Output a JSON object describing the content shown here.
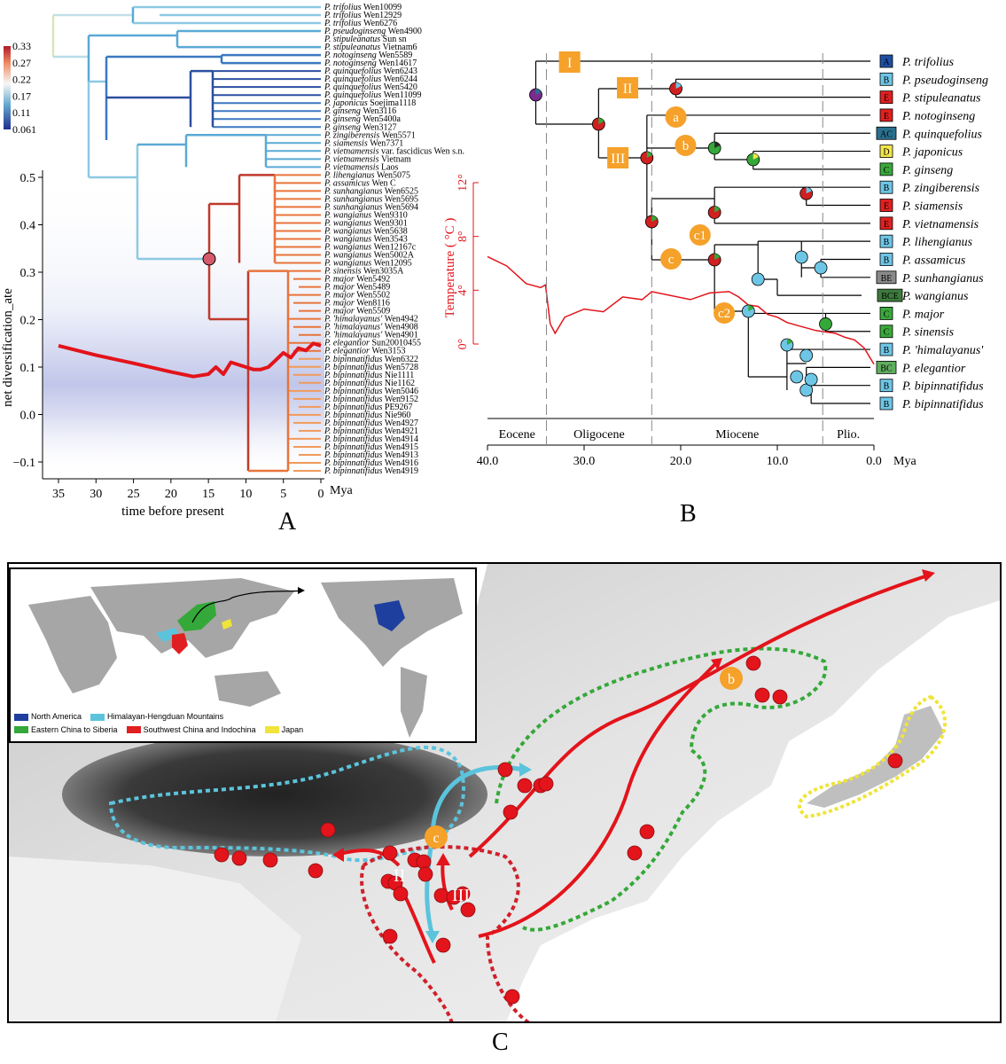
{
  "panel_labels": {
    "a": "A",
    "b": "B",
    "c": "C"
  },
  "panelA": {
    "colorbar_ticks": [
      "0.33",
      "0.27",
      "0.22",
      "0.17",
      "0.11",
      "0.061"
    ],
    "y_axis_label": "net diversification_ate",
    "x_axis_label": "time before present",
    "x_unit": "Mya",
    "tips": [
      {
        "sp": "P. trifolius",
        "id": "Wen10099"
      },
      {
        "sp": "P. trifolius",
        "id": "Wen12929"
      },
      {
        "sp": "P. trifolius",
        "id": "Wen6276"
      },
      {
        "sp": "P. pseudoginseng",
        "id": "Wen4900"
      },
      {
        "sp": "P. stipuleanatus",
        "id": "Sun sn"
      },
      {
        "sp": "P. stipuleanatus",
        "id": "Vietnam6"
      },
      {
        "sp": "P. notoginseng",
        "id": "Wen5589"
      },
      {
        "sp": "P. notoginseng",
        "id": "Wen14617"
      },
      {
        "sp": "P. quinquefolius",
        "id": "Wen6243"
      },
      {
        "sp": "P. quinquefolius",
        "id": "Wen6244"
      },
      {
        "sp": "P. quinquefolius",
        "id": "Wen5420"
      },
      {
        "sp": "P. quinquefolius",
        "id": "Wen11099"
      },
      {
        "sp": "P. japonicus",
        "id": "Soejima1118"
      },
      {
        "sp": "P. ginseng",
        "id": "Wen3116"
      },
      {
        "sp": "P. ginseng",
        "id": "Wen5400a"
      },
      {
        "sp": "P. ginseng",
        "id": "Wen3127"
      },
      {
        "sp": "P. zingiberensis",
        "id": "Wen5571"
      },
      {
        "sp": "P. siamensis",
        "id": "Wen7371"
      },
      {
        "sp": "P. vietnamensis",
        "id": "var. fascidicus Wen s.n."
      },
      {
        "sp": "P. vietnamensis",
        "id": "Vietnam"
      },
      {
        "sp": "P. vietnamensis",
        "id": "Laos"
      },
      {
        "sp": "P. lihengianus",
        "id": "Wen5075"
      },
      {
        "sp": "P. assamicus",
        "id": "Wen C"
      },
      {
        "sp": "P. sunhangianus",
        "id": "Wen6525"
      },
      {
        "sp": "P. sunhangianus",
        "id": "Wen5695"
      },
      {
        "sp": "P. sunhangianus",
        "id": "Wen5694"
      },
      {
        "sp": "P. wangianus",
        "id": "Wen9310"
      },
      {
        "sp": "P. wangianus",
        "id": "Wen9301"
      },
      {
        "sp": "P. wangianus",
        "id": "Wen5638"
      },
      {
        "sp": "P. wangianus",
        "id": "Wen3543"
      },
      {
        "sp": "P. wangianus",
        "id": "Wen12167c"
      },
      {
        "sp": "P. wangianus",
        "id": "Wen5002A"
      },
      {
        "sp": "P. wangianus",
        "id": "Wen12095"
      },
      {
        "sp": "P. sinensis",
        "id": "Wen3035A"
      },
      {
        "sp": "P. major",
        "id": "Wen5492"
      },
      {
        "sp": "P. major",
        "id": "Wen5489"
      },
      {
        "sp": "P. major",
        "id": "Wen5502"
      },
      {
        "sp": "P. major",
        "id": "Wen8116"
      },
      {
        "sp": "P. major",
        "id": "Wen5509"
      },
      {
        "sp": "P. 'himalayanus'",
        "id": "Wen4942"
      },
      {
        "sp": "P. 'himalayanus'",
        "id": "Wen4908"
      },
      {
        "sp": "P. 'himalayanus'",
        "id": "Wen4901"
      },
      {
        "sp": "P. elegantior",
        "id": "Sun20010455"
      },
      {
        "sp": "P. elegantior",
        "id": "Wen3153"
      },
      {
        "sp": "P. bipinnatifidus",
        "id": "Wen6322"
      },
      {
        "sp": "P. bipinnatifidus",
        "id": "Wen5728"
      },
      {
        "sp": "P. bipinnatifidus",
        "id": "Nie1111"
      },
      {
        "sp": "P. bipinnatifidus",
        "id": "Nie1162"
      },
      {
        "sp": "P. bipinnatifidus",
        "id": "Wen5046"
      },
      {
        "sp": "P. bipinnatifidus",
        "id": "Wen9152"
      },
      {
        "sp": "P. bipinnatifidus",
        "id": "PE9267"
      },
      {
        "sp": "P. bipinnatifidus",
        "id": "Nie960"
      },
      {
        "sp": "P. bipinnatifidus",
        "id": "Wen4927"
      },
      {
        "sp": "P. bipinnatifidus",
        "id": "Wen4921"
      },
      {
        "sp": "P. bipinnatifidus",
        "id": "Wen4914"
      },
      {
        "sp": "P. bipinnatifidus",
        "id": "Wen4915"
      },
      {
        "sp": "P. bipinnatifidus",
        "id": "Wen4913"
      },
      {
        "sp": "P. bipinnatifidus",
        "id": "Wen4916"
      },
      {
        "sp": "P. bipinnatifidus",
        "id": "Wen4919"
      }
    ]
  },
  "chart_data": [
    {
      "type": "line",
      "panel": "A",
      "xlabel": "time before present",
      "ylabel": "net diversification_ate",
      "xlim": [
        37,
        -1
      ],
      "ylim": [
        -0.13,
        0.53
      ],
      "x_ticks": [
        35,
        30,
        25,
        20,
        15,
        10,
        5,
        0
      ],
      "y_ticks": [
        0.5,
        0.4,
        0.3,
        0.2,
        0.1,
        0.0,
        -0.1
      ],
      "x_tick_labels": [
        "35",
        "30",
        "25",
        "20",
        "15",
        "10",
        "5",
        "0"
      ],
      "y_tick_labels": [
        "0.5",
        "0.4",
        "0.3",
        "0.2",
        "0.1",
        "0.0",
        "−0.1"
      ],
      "x": [
        35,
        30,
        25,
        20,
        17,
        15,
        14,
        13,
        12,
        10,
        9,
        8,
        7,
        6,
        5,
        4,
        3,
        2,
        1,
        0
      ],
      "y": [
        0.145,
        0.125,
        0.108,
        0.09,
        0.08,
        0.085,
        0.1,
        0.085,
        0.11,
        0.1,
        0.095,
        0.095,
        0.1,
        0.115,
        0.13,
        0.12,
        0.14,
        0.135,
        0.15,
        0.145
      ]
    },
    {
      "type": "line",
      "panel": "B",
      "ylabel": "Temperature ( °C )",
      "y_ticks": [
        0,
        4,
        8,
        12
      ],
      "y_tick_labels": [
        "0°",
        "4°",
        "8°",
        "12°"
      ],
      "xlim": [
        40,
        0
      ],
      "ylim": [
        0,
        13
      ],
      "x_ticks": [
        40,
        30,
        20,
        10,
        0
      ],
      "x_tick_labels": [
        "40.0",
        "30.0",
        "20.0",
        "10.0",
        "0.0"
      ],
      "x_unit": "Mya",
      "x": [
        40,
        38,
        36,
        34.5,
        34,
        33.5,
        33,
        32,
        30,
        28,
        26,
        24,
        23,
        21,
        19,
        17,
        15,
        14,
        13,
        12,
        11,
        10,
        9,
        8,
        7,
        6,
        5,
        4,
        3,
        2,
        1,
        0
      ],
      "y": [
        6.5,
        5.8,
        4.5,
        4.2,
        4.4,
        1.5,
        0.8,
        2.0,
        2.6,
        2.4,
        3.5,
        3.3,
        3.9,
        3.6,
        3.3,
        3.8,
        3.9,
        3.5,
        2.9,
        2.8,
        2.2,
        2.0,
        1.6,
        1.4,
        1.2,
        1.0,
        0.9,
        0.8,
        0.5,
        0.3,
        -0.3,
        -1.5
      ]
    }
  ],
  "panelB": {
    "epochs": [
      "Eocene",
      "Oligocene",
      "Miocene",
      "Plio."
    ],
    "x_unit": "Mya",
    "nodes": {
      "I": "I",
      "II": "II",
      "III": "III",
      "a": "a",
      "b": "b",
      "c": "c",
      "c1": "c1",
      "c2": "c2"
    },
    "taxa": [
      {
        "name": "P. trifolius",
        "code": "A",
        "color": "#1f4fa3"
      },
      {
        "name": "P. pseudoginseng",
        "code": "B",
        "color": "#6ec6e6"
      },
      {
        "name": "P. stipuleanatus",
        "code": "E",
        "color": "#e02020"
      },
      {
        "name": "P. notoginseng",
        "code": "E",
        "color": "#e02020"
      },
      {
        "name": "P. quinquefolius",
        "code": "AC",
        "color": "#2a6f8e"
      },
      {
        "name": "P. japonicus",
        "code": "D",
        "color": "#f2e64a"
      },
      {
        "name": "P. ginseng",
        "code": "C",
        "color": "#3aa83a"
      },
      {
        "name": "P. zingiberensis",
        "code": "B",
        "color": "#6ec6e6"
      },
      {
        "name": "P. siamensis",
        "code": "E",
        "color": "#e02020"
      },
      {
        "name": "P. vietnamensis",
        "code": "E",
        "color": "#e02020"
      },
      {
        "name": "P. lihengianus",
        "code": "B",
        "color": "#6ec6e6"
      },
      {
        "name": "P. assamicus",
        "code": "B",
        "color": "#6ec6e6"
      },
      {
        "name": "P. sunhangianus",
        "code": "BE",
        "color": "#8a8a8a"
      },
      {
        "name": "P. wangianus",
        "code": "BCE",
        "color": "#3d7a3d"
      },
      {
        "name": "P. major",
        "code": "C",
        "color": "#3aa83a"
      },
      {
        "name": "P. sinensis",
        "code": "C",
        "color": "#3aa83a"
      },
      {
        "name": "P. 'himalayanus'",
        "code": "B",
        "color": "#6ec6e6"
      },
      {
        "name": "P. elegantior",
        "code": "BC",
        "color": "#5fae5f"
      },
      {
        "name": "P. bipinnatifidus",
        "code": "B",
        "color": "#6ec6e6"
      },
      {
        "name": "P. bipinnatifidus",
        "code": "B",
        "color": "#6ec6e6"
      }
    ]
  },
  "panelC": {
    "legend": [
      {
        "label": "North America",
        "color": "#1f3f9e"
      },
      {
        "label": "Himalayan-Hengduan Mountains",
        "color": "#5bc4dc"
      },
      {
        "label": "Eastern China to Siberia",
        "color": "#35a83a"
      },
      {
        "label": "Southwest China and Indochina",
        "color": "#e02020"
      },
      {
        "label": "Japan",
        "color": "#f0e43a"
      }
    ],
    "map_labels": {
      "b": "b",
      "c": "c",
      "II": "II",
      "III": "III"
    }
  }
}
